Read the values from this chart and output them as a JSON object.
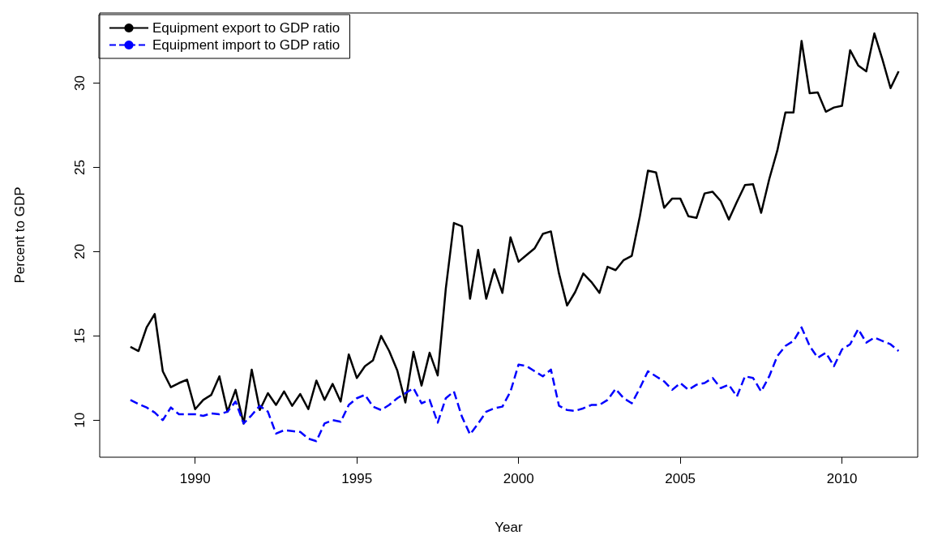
{
  "chart_data": {
    "type": "line",
    "xlabel": "Year",
    "ylabel": "Percent to GDP",
    "x": [
      1988,
      1988.25,
      1988.5,
      1988.75,
      1989,
      1989.25,
      1989.5,
      1989.75,
      1990,
      1990.25,
      1990.5,
      1990.75,
      1991,
      1991.25,
      1991.5,
      1991.75,
      1992,
      1992.25,
      1992.5,
      1992.75,
      1993,
      1993.25,
      1993.5,
      1993.75,
      1994,
      1994.25,
      1994.5,
      1994.75,
      1995,
      1995.25,
      1995.5,
      1995.75,
      1996,
      1996.25,
      1996.5,
      1996.75,
      1997,
      1997.25,
      1997.5,
      1997.75,
      1998,
      1998.25,
      1998.5,
      1998.75,
      1999,
      1999.25,
      1999.5,
      1999.75,
      2000,
      2000.25,
      2000.5,
      2000.75,
      2001,
      2001.25,
      2001.5,
      2001.75,
      2002,
      2002.25,
      2002.5,
      2002.75,
      2003,
      2003.25,
      2003.5,
      2003.75,
      2004,
      2004.25,
      2004.5,
      2004.75,
      2005,
      2005.25,
      2005.5,
      2005.75,
      2006,
      2006.25,
      2006.5,
      2006.75,
      2007,
      2007.25,
      2007.5,
      2007.75,
      2008,
      2008.25,
      2008.5,
      2008.75,
      2009,
      2009.25,
      2009.5,
      2009.75,
      2010,
      2010.25,
      2010.5,
      2010.75,
      2011,
      2011.25,
      2011.5,
      2011.75
    ],
    "series": [
      {
        "name": "Equipment export to GDP ratio",
        "color": "#000000",
        "line_style": "solid",
        "values": [
          14.35,
          14.1,
          15.5,
          16.3,
          12.9,
          11.95,
          12.2,
          12.4,
          10.65,
          11.2,
          11.5,
          12.6,
          10.5,
          11.8,
          9.8,
          13.0,
          10.6,
          11.6,
          10.9,
          11.7,
          10.85,
          11.55,
          10.65,
          12.35,
          11.2,
          12.15,
          11.1,
          13.9,
          12.5,
          13.2,
          13.55,
          15.0,
          14.1,
          12.95,
          11.05,
          14.05,
          12.05,
          14.0,
          12.65,
          17.8,
          21.7,
          21.5,
          17.2,
          20.1,
          17.2,
          18.95,
          17.55,
          20.85,
          19.4,
          19.8,
          20.2,
          21.05,
          21.2,
          18.7,
          16.8,
          17.6,
          18.7,
          18.2,
          17.55,
          19.1,
          18.9,
          19.5,
          19.75,
          22.1,
          24.8,
          24.7,
          22.6,
          23.15,
          23.15,
          22.1,
          22.0,
          23.45,
          23.55,
          23.0,
          21.9,
          22.95,
          23.95,
          24.0,
          22.3,
          24.3,
          26.0,
          28.25,
          28.25,
          32.5,
          29.4,
          29.45,
          28.3,
          28.55,
          28.65,
          31.95,
          31.05,
          30.7,
          32.95,
          31.4,
          29.7,
          30.7
        ]
      },
      {
        "name": "Equipment import to GDP ratio",
        "color": "#0000ff",
        "line_style": "dashed",
        "values": [
          11.2,
          10.95,
          10.75,
          10.45,
          10.0,
          10.75,
          10.35,
          10.35,
          10.35,
          10.25,
          10.4,
          10.35,
          10.5,
          11.1,
          9.8,
          10.3,
          10.85,
          10.5,
          9.2,
          9.4,
          9.35,
          9.3,
          8.9,
          8.75,
          9.8,
          10.0,
          9.9,
          10.9,
          11.3,
          11.5,
          10.8,
          10.6,
          10.9,
          11.3,
          11.6,
          11.9,
          11.0,
          11.2,
          9.85,
          11.3,
          11.7,
          10.2,
          9.15,
          9.8,
          10.5,
          10.7,
          10.8,
          11.7,
          13.3,
          13.2,
          12.9,
          12.6,
          13.0,
          10.85,
          10.6,
          10.55,
          10.7,
          10.9,
          10.9,
          11.2,
          11.85,
          11.3,
          11.0,
          11.9,
          12.9,
          12.6,
          12.3,
          11.8,
          12.2,
          11.8,
          12.1,
          12.2,
          12.5,
          11.9,
          12.1,
          11.4,
          12.6,
          12.5,
          11.7,
          12.6,
          13.8,
          14.4,
          14.7,
          15.5,
          14.4,
          13.7,
          14.0,
          13.2,
          14.2,
          14.5,
          15.4,
          14.6,
          14.9,
          14.7,
          14.5,
          14.1
        ]
      }
    ],
    "xlim": [
      1987.05,
      2012.34
    ],
    "xticks": [
      1990,
      1995,
      2000,
      2005,
      2010
    ],
    "ylim": [
      7.8,
      34.16
    ],
    "yticks": [
      10,
      15,
      20,
      25,
      30
    ],
    "grid": false,
    "legend": "top left",
    "marker": "none"
  }
}
